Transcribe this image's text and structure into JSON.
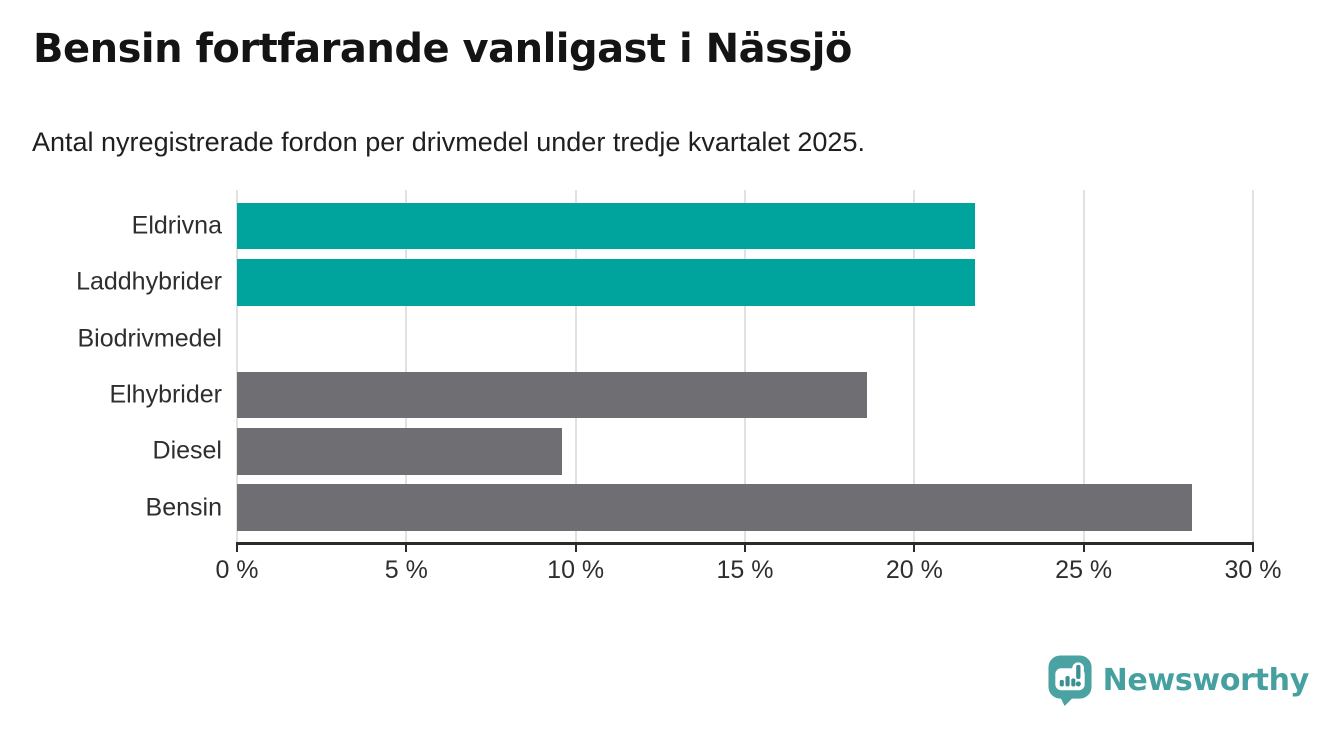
{
  "header": {
    "title": "Bensin fortfarande vanligast i Nässjö",
    "subtitle": "Antal nyregistrerade fordon per drivmedel under tredje kvartalet 2025."
  },
  "chart_data": {
    "type": "bar",
    "orientation": "horizontal",
    "categories": [
      "Eldrivna",
      "Laddhybrider",
      "Biodrivmedel",
      "Elhybrider",
      "Diesel",
      "Bensin"
    ],
    "values": [
      21.8,
      21.8,
      0,
      18.6,
      9.6,
      28.2
    ],
    "unit": "%",
    "bar_colors": [
      "#00a49c",
      "#00a49c",
      "#6e6e73",
      "#6e6e73",
      "#6e6e73",
      "#6e6e73"
    ],
    "highlight_color": "#00a49c",
    "default_color": "#6e6e73",
    "title": "Bensin fortfarande vanligast i Nässjö",
    "subtitle": "Antal nyregistrerade fordon per drivmedel under tredje kvartalet 2025.",
    "xlabel": "",
    "ylabel": "",
    "xlim": [
      0,
      30
    ],
    "x_ticks": [
      0,
      5,
      10,
      15,
      20,
      25,
      30
    ],
    "x_tick_labels": [
      "0 %",
      "5 %",
      "10 %",
      "15 %",
      "20 %",
      "25 %",
      "30 %"
    ],
    "grid": true,
    "gridline_color": "#e1e1e1",
    "axis_color": "#2b2b2b",
    "legend": "none"
  },
  "branding": {
    "logo_text": "Newsworthy",
    "logo_color": "#46a0a0",
    "logo_icon": "newsworthy-pin-chart-icon"
  }
}
